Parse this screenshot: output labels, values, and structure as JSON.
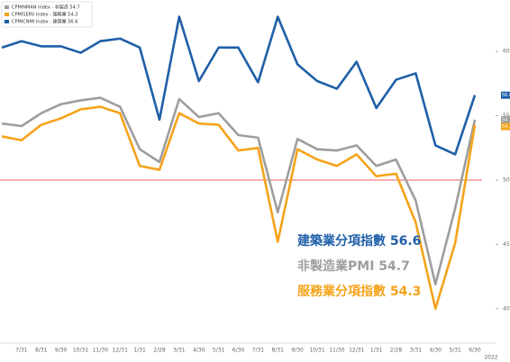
{
  "chart_data": {
    "type": "line",
    "legend_entries": [
      "CPMINMAN Index - 非製造 54.7",
      "CPMISERV Index - 服務業 54.3",
      "CPMICNMI Index - 建築業 56.6"
    ],
    "categories": [
      null,
      "7/31",
      "8/31",
      "9/30",
      "10/31",
      "11/30",
      "12/31",
      "1/31",
      "2/28",
      "3/31",
      "4/30",
      "5/31",
      "6/30",
      "7/31",
      "8/31",
      "9/30",
      "10/31",
      "11/30",
      "12/31",
      "1/31",
      "2/28",
      "3/31",
      "4/30",
      "5/31",
      "6/30"
    ],
    "year_label": "2022",
    "series": [
      {
        "name": "建築業分項指數 56.6",
        "color": "#1f5fa8",
        "flag": "56.6",
        "values": [
          60.3,
          60.8,
          60.4,
          60.4,
          59.9,
          60.8,
          61.0,
          60.3,
          54.7,
          62.7,
          57.7,
          60.3,
          60.3,
          57.6,
          62.7,
          59.0,
          57.7,
          57.1,
          59.2,
          55.6,
          57.8,
          58.3,
          52.7,
          52.0,
          56.6
        ]
      },
      {
        "name": "非製造業PMI 54.7",
        "color": "#9e9e9e",
        "flag": "54.7",
        "values": [
          54.4,
          54.2,
          55.2,
          55.9,
          56.2,
          56.4,
          55.7,
          52.4,
          51.4,
          56.3,
          54.9,
          55.2,
          53.5,
          53.3,
          47.5,
          53.2,
          52.4,
          52.3,
          52.7,
          51.1,
          51.6,
          48.4,
          41.9,
          47.8,
          54.7
        ]
      },
      {
        "name": "服務業分項指數 54.3",
        "color": "#f5a31a",
        "flag": "54.3",
        "values": [
          53.4,
          53.1,
          54.3,
          54.8,
          55.5,
          55.7,
          55.2,
          51.1,
          50.8,
          55.2,
          54.4,
          54.3,
          52.3,
          52.5,
          45.2,
          52.4,
          51.6,
          51.1,
          52.0,
          50.3,
          50.5,
          46.7,
          40.0,
          45.1,
          54.3
        ]
      }
    ],
    "reference_line": 50,
    "reference_color": "#f08080",
    "ylim": [
      36,
      64
    ],
    "yticks": [
      40,
      45,
      50,
      55,
      60
    ]
  }
}
